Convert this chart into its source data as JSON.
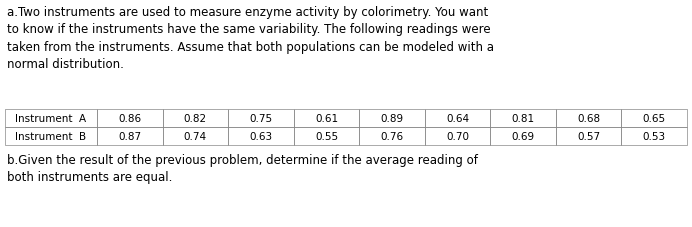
{
  "para_a": "a.Two instruments are used to measure enzyme activity by colorimetry. You want\nto know if the instruments have the same variability. The following readings were\ntaken from the instruments. Assume that both populations can be modeled with a\nnormal distribution.",
  "para_b": "b.Given the result of the previous problem, determine if the average reading of\nboth instruments are equal.",
  "row_labels": [
    "Instrument  A",
    "Instrument  B"
  ],
  "col_data": [
    [
      "0.86",
      "0.82",
      "0.75",
      "0.61",
      "0.89",
      "0.64",
      "0.81",
      "0.68",
      "0.65"
    ],
    [
      "0.87",
      "0.74",
      "0.63",
      "0.55",
      "0.76",
      "0.70",
      "0.69",
      "0.57",
      "0.53"
    ]
  ],
  "bg_color": "#ffffff",
  "text_color": "#000000",
  "font_size": 8.5,
  "table_font_size": 7.5,
  "fig_width": 6.92,
  "fig_height": 2.28,
  "dpi": 100
}
